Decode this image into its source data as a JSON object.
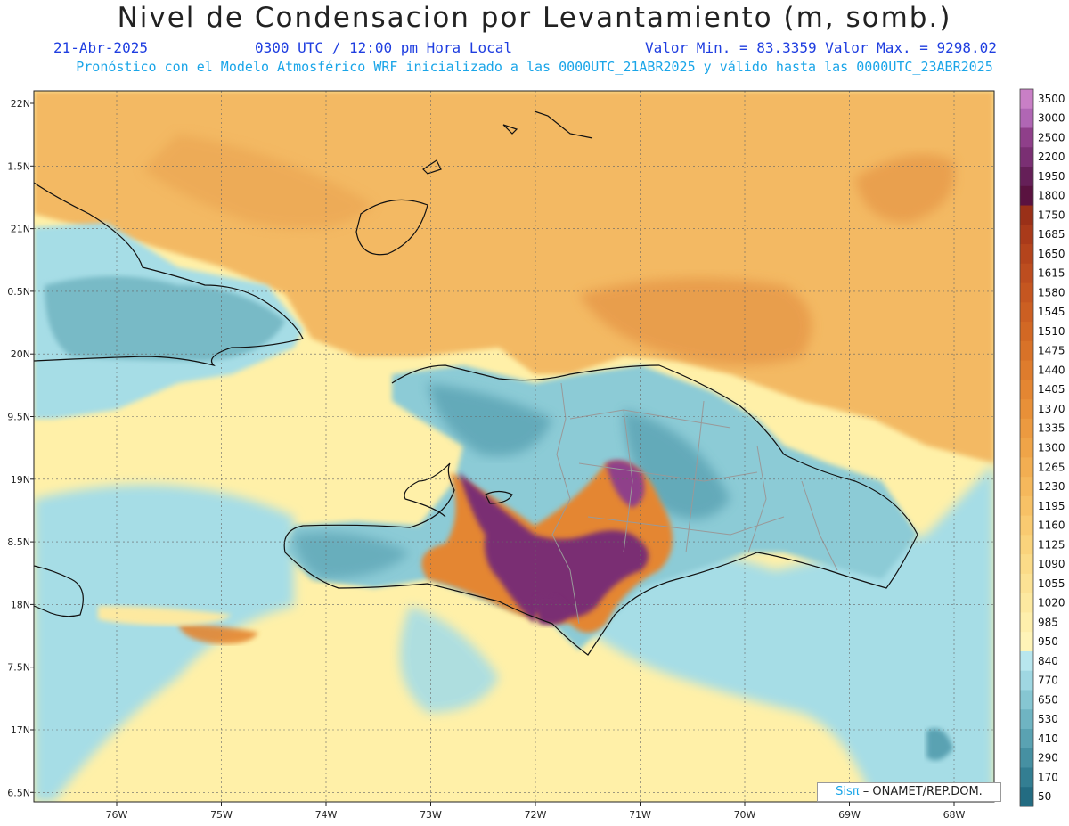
{
  "header": {
    "title": "Nivel de Condensacion por Levantamiento (m, somb.)",
    "date": "21-Abr-2025",
    "time": "0300 UTC / 12:00 pm Hora Local",
    "min_max": "Valor Min. = 83.3359  Valor Max. = 9298.02",
    "model_info": "Pronóstico con el Modelo Atmosférico WRF inicializado a las 0000UTC_21ABR2025 y válido hasta las  0000UTC_23ABR2025"
  },
  "credit": {
    "sis": "Sisπ",
    "text": "– ONAMET/REP.DOM."
  },
  "axes": {
    "lat_labels": [
      "22N",
      "1.5N",
      "21N",
      "0.5N",
      "20N",
      "9.5N",
      "19N",
      "8.5N",
      "18N",
      "7.5N",
      "17N",
      "6.5N"
    ],
    "lon_labels": [
      "76W",
      "75W",
      "74W",
      "73W",
      "72W",
      "71W",
      "70W",
      "69W",
      "68W"
    ]
  },
  "colorbar": {
    "labels": [
      "3500",
      "3000",
      "2500",
      "2200",
      "1950",
      "1800",
      "1750",
      "1685",
      "1650",
      "1615",
      "1580",
      "1545",
      "1510",
      "1475",
      "1440",
      "1405",
      "1370",
      "1335",
      "1300",
      "1265",
      "1230",
      "1195",
      "1160",
      "1125",
      "1090",
      "1055",
      "1020",
      "985",
      "950",
      "840",
      "770",
      "650",
      "530",
      "410",
      "290",
      "170",
      "50"
    ],
    "colors": [
      "#c97fc6",
      "#b066b4",
      "#8f3f8a",
      "#7a2f73",
      "#651f58",
      "#5a1240",
      "#9a3018",
      "#a93a1a",
      "#b4441c",
      "#bd4d1f",
      "#c55620",
      "#cc5f22",
      "#d26824",
      "#d87228",
      "#de7c2d",
      "#e48632",
      "#e89038",
      "#ec9a40",
      "#efa448",
      "#f2ae52",
      "#f5b85c",
      "#f7c166",
      "#f9ca71",
      "#fad37c",
      "#fbdb88",
      "#fce294",
      "#fde9a0",
      "#feefac",
      "#fff4b8",
      "#b8e6ee",
      "#9fd7e2",
      "#86c6d2",
      "#6fb4c2",
      "#5aa2b2",
      "#4690a2",
      "#337e92",
      "#236c82"
    ]
  },
  "colors": {
    "ocean_pale": "#fff0a8",
    "ocean_cyan": "#a6dde6",
    "north_orange": "#f3b964",
    "dark_orange": "#e79a48",
    "land_teal": "#78bac6",
    "high_purple": "#7a2f73"
  }
}
